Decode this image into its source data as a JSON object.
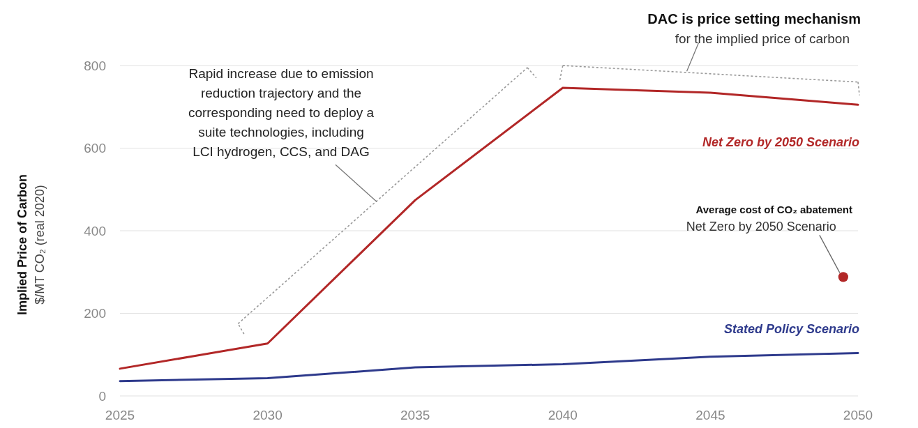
{
  "chart_data": {
    "type": "line",
    "ylabel": "Implied Price of Carbon\n$/MT CO₂ (real 2020)",
    "x": [
      2025,
      2030,
      2035,
      2040,
      2045,
      2050
    ],
    "series": [
      {
        "name": "Net Zero by 2050 Scenario",
        "color": "#b22727",
        "values": [
          66,
          127,
          474,
          746,
          734,
          705
        ]
      },
      {
        "name": "Stated Policy Scenario",
        "color": "#2e3a8c",
        "values": [
          36,
          43,
          69,
          77,
          95,
          104
        ]
      },
      {
        "type": "scatter",
        "color": "#b22727",
        "x": [
          2049.5
        ],
        "values": [
          288
        ],
        "marker": "circle"
      }
    ],
    "annotations": [
      "Rapid increase due to emission reduction trajectory and the corresponding need to deploy a suite technologies, including LCI hydrogen, CCS, and DAG",
      "DAC is price setting mechanism",
      "for the implied price of carbon",
      "Average cost of CO₂ abatement",
      {
        "text": "Net Zero by 2050 Scenario",
        "x": 2049.5,
        "y": 288
      }
    ],
    "xlim": [
      2025,
      2050
    ],
    "xticks": [
      2025,
      2030,
      2035,
      2040,
      2045,
      2050
    ],
    "ylim": [
      0,
      800
    ],
    "yticks": [
      0,
      200,
      400,
      600,
      800
    ],
    "grid": "y",
    "marker": "none",
    "line_style": "solid"
  }
}
